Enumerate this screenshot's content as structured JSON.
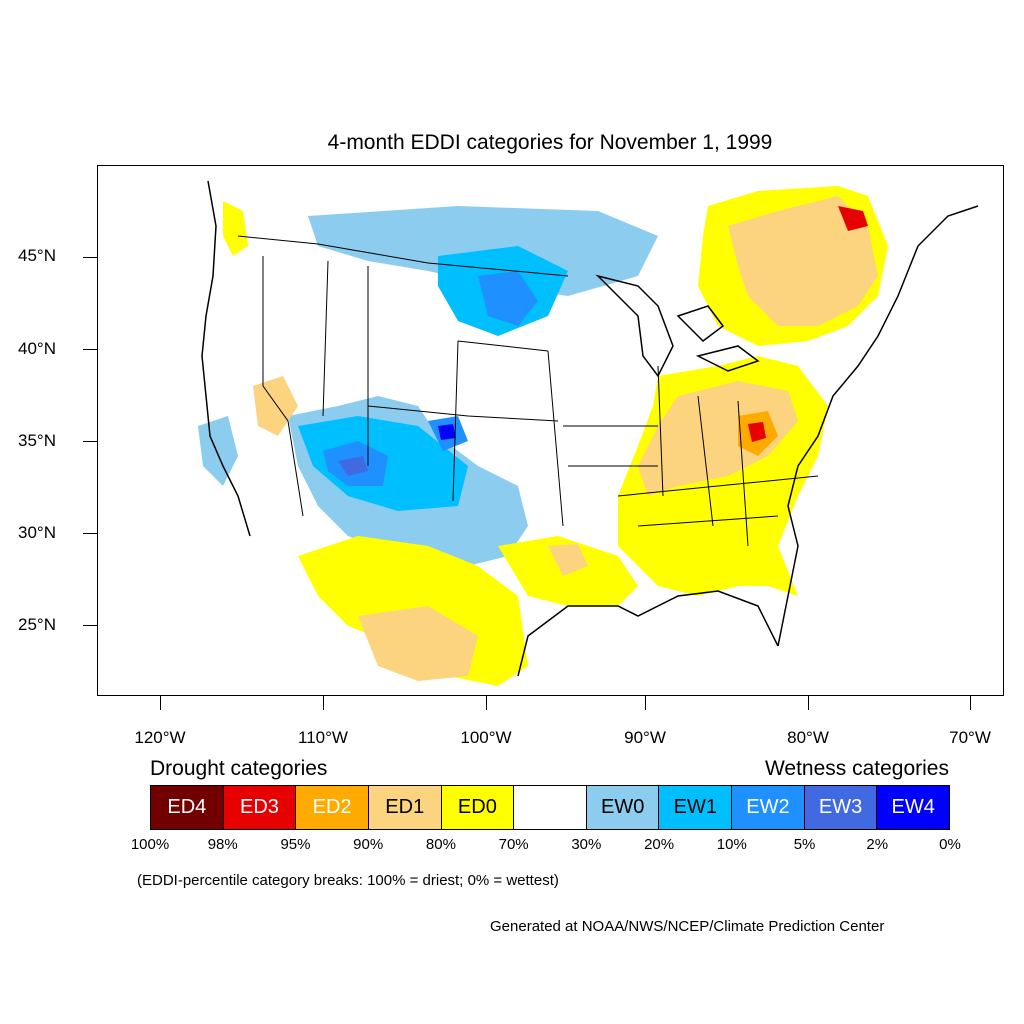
{
  "title": "4-month EDDI categories for November 1, 1999",
  "axes": {
    "lat_labels": [
      "45°N",
      "40°N",
      "35°N",
      "30°N",
      "25°N"
    ],
    "lon_labels": [
      "120°W",
      "110°W",
      "100°W",
      "90°W",
      "80°W",
      "70°W"
    ]
  },
  "legend": {
    "drought_heading": "Drought categories",
    "wetness_heading": "Wetness categories",
    "categories": [
      {
        "label": "ED4",
        "color": "#730000",
        "text_color": "#ffffff"
      },
      {
        "label": "ED3",
        "color": "#e60000",
        "text_color": "#ffffff"
      },
      {
        "label": "ED2",
        "color": "#ffaa00",
        "text_color": "#ffffff"
      },
      {
        "label": "ED1",
        "color": "#fcd37f",
        "text_color": "#000000"
      },
      {
        "label": "ED0",
        "color": "#ffff00",
        "text_color": "#000000"
      },
      {
        "label": "",
        "color": "#ffffff",
        "text_color": "#000000"
      },
      {
        "label": "EW0",
        "color": "#8ccdef",
        "text_color": "#000000"
      },
      {
        "label": "EW1",
        "color": "#00bfff",
        "text_color": "#000000"
      },
      {
        "label": "EW2",
        "color": "#1e90ff",
        "text_color": "#ffffff"
      },
      {
        "label": "EW3",
        "color": "#4169e1",
        "text_color": "#ffffff"
      },
      {
        "label": "EW4",
        "color": "#0000ff",
        "text_color": "#ffffff"
      }
    ],
    "breaks": [
      "100%",
      "98%",
      "95%",
      "90%",
      "80%",
      "70%",
      "30%",
      "20%",
      "10%",
      "5%",
      "2%",
      "0%"
    ]
  },
  "note": "(EDDI-percentile category breaks: 100% = driest; 0% = wettest)",
  "credit": "Generated at NOAA/NWS/NCEP/Climate Prediction Center"
}
